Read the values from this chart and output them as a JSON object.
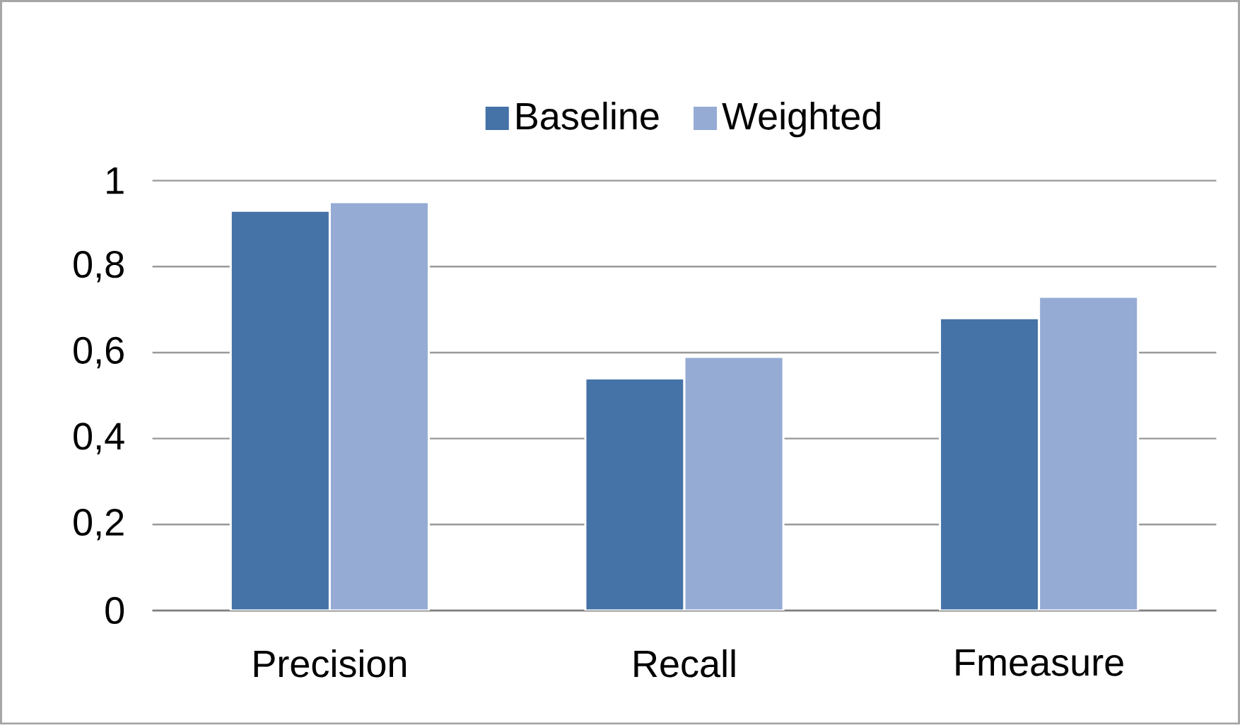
{
  "chart_data": {
    "type": "bar",
    "categories": [
      "Precision",
      "Recall",
      "Fmeasure"
    ],
    "series": [
      {
        "name": "Baseline",
        "color": "#4572a7",
        "values": [
          0.93,
          0.54,
          0.68
        ]
      },
      {
        "name": "Weighted",
        "color": "#95abd4",
        "values": [
          0.95,
          0.59,
          0.73
        ]
      }
    ],
    "ylim": [
      0,
      1
    ],
    "yticks": [
      0,
      {
        "value": 0.2,
        "label": "0,2"
      },
      {
        "value": 0.4,
        "label": "0,4"
      },
      {
        "value": 0.6,
        "label": "0,6"
      },
      {
        "value": 0.8,
        "label": "0,8"
      },
      1
    ],
    "grid": "y",
    "legend": "top"
  }
}
